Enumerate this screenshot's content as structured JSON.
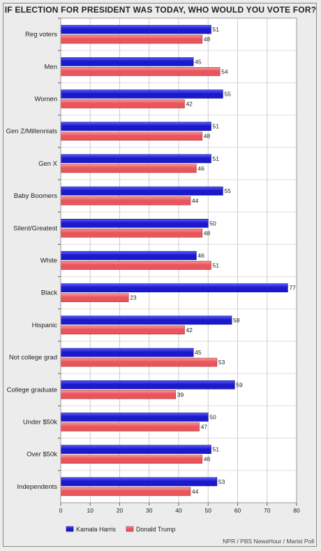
{
  "title": "IF ELECTION FOR PRESIDENT WAS TODAY, WHO WOULD YOU VOTE FOR?",
  "source": "NPR / PBS NewsHour / Marist Poll",
  "chart_data": {
    "type": "bar",
    "orientation": "horizontal",
    "title": "IF ELECTION FOR PRESIDENT WAS TODAY, WHO WOULD YOU VOTE FOR?",
    "categories": [
      "Reg voters",
      "Men",
      "Women",
      "Gen Z/Millennials",
      "Gen X",
      "Baby Boomers",
      "Silent/Greatest",
      "White",
      "Black",
      "Hispanic",
      "Not college grad",
      "College graduate",
      "Under $50k",
      "Over $50k",
      "Independents"
    ],
    "series": [
      {
        "name": "Kamala Harris",
        "color": "#1a1acc",
        "values": [
          51,
          45,
          55,
          51,
          51,
          55,
          50,
          46,
          77,
          58,
          45,
          59,
          50,
          51,
          53
        ]
      },
      {
        "name": "Donald Trump",
        "color": "#e8555a",
        "values": [
          48,
          54,
          42,
          48,
          46,
          44,
          48,
          51,
          23,
          42,
          53,
          39,
          47,
          48,
          44
        ]
      }
    ],
    "xlim": [
      0,
      80
    ],
    "xticks": [
      0,
      10,
      20,
      30,
      40,
      50,
      60,
      70,
      80
    ],
    "grid": true,
    "legend_position": "bottom-left"
  }
}
